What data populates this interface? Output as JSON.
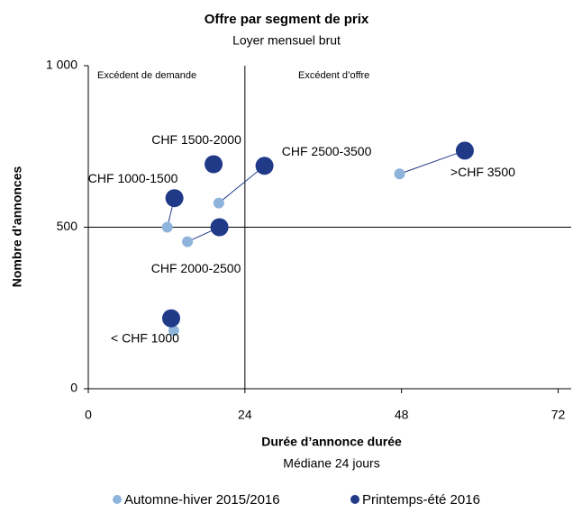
{
  "chart_data": {
    "type": "scatter",
    "title": "Offre par segment de prix",
    "subtitle": "Loyer mensuel brut",
    "x_label": "Durée d’annonce  durée",
    "x_sublabel": "Médiane 24 jours",
    "y_label": "Nombre d’annonces",
    "annotations": [
      "Excédent de demande",
      "Excédent d’offre"
    ],
    "quadrant_x": 24,
    "quadrant_y": 500,
    "categories": [
      "< CHF 1000",
      "CHF 1000-1500",
      "CHF 1500-2000",
      "CHF 2000-2500",
      "CHF 2500-3500",
      ">CHF 3500"
    ],
    "series": [
      {
        "name": "Automne-hiver 2015/2016",
        "color": "#8fb4dc",
        "x": [
          13.1,
          12.1,
          19,
          15.2,
          20,
          47.7
        ],
        "values": [
          180,
          500,
          690,
          455,
          575,
          665
        ]
      },
      {
        "name": "Printemps-été 2016",
        "color": "#203a88",
        "x": [
          12.7,
          13.2,
          19.2,
          20.1,
          27,
          57.7
        ],
        "values": [
          218,
          590,
          695,
          500,
          690,
          737
        ]
      }
    ],
    "xlim": [
      0,
      74
    ],
    "ylim": [
      0,
      1000
    ],
    "xticks": [
      0,
      24,
      48,
      72
    ],
    "yticks": [
      0,
      500,
      {
        "value": 1000,
        "label": "1 000"
      }
    ],
    "legend": "bottom"
  }
}
